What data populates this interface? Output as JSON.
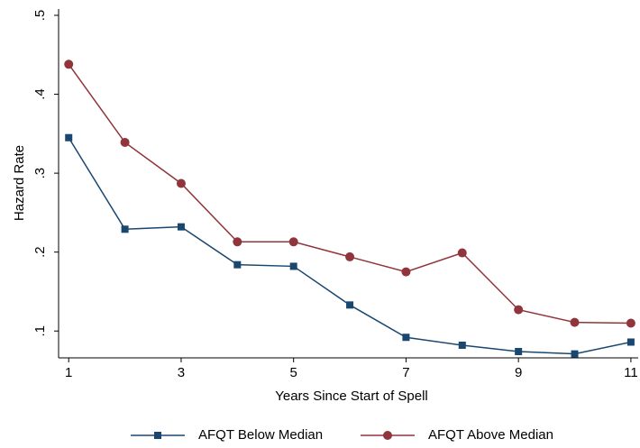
{
  "chart_data": {
    "type": "line",
    "x": [
      1,
      2,
      3,
      4,
      5,
      6,
      7,
      8,
      9,
      10,
      11
    ],
    "xlabel": "Years Since Start of Spell",
    "ylabel": "Hazard Rate",
    "xlim": [
      0.82,
      11.13
    ],
    "xticks": [
      1,
      3,
      5,
      7,
      9,
      11
    ],
    "ylim": [
      0.066,
      0.508
    ],
    "yticks": [
      {
        "value": 0.1,
        "label": ".1"
      },
      {
        "value": 0.2,
        "label": ".2"
      },
      {
        "value": 0.3,
        "label": ".3"
      },
      {
        "value": 0.4,
        "label": ".4"
      },
      {
        "value": 0.5,
        "label": ".5"
      }
    ],
    "grid": false,
    "legend": "bottom",
    "series": [
      {
        "name": "AFQT Below Median",
        "color": "#1a476f",
        "marker": "square",
        "values": [
          0.345,
          0.229,
          0.232,
          0.184,
          0.182,
          0.133,
          0.092,
          0.082,
          0.074,
          0.071,
          0.086
        ]
      },
      {
        "name": "AFQT Above Median",
        "color": "#90353b",
        "marker": "circle",
        "values": [
          0.438,
          0.339,
          0.287,
          0.213,
          0.213,
          0.194,
          0.175,
          0.199,
          0.127,
          0.111,
          0.11
        ]
      }
    ]
  }
}
